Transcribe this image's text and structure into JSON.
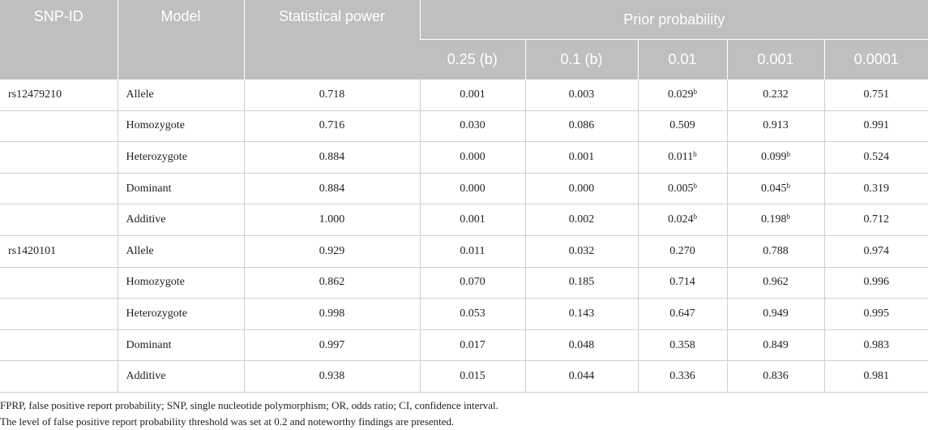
{
  "header": {
    "snp_id": "SNP-ID",
    "model": "Model",
    "statistical_power": "Statistical power",
    "prior_probability": "Prior probability",
    "priors": [
      "0.25 (b)",
      "0.1 (b)",
      "0.01",
      "0.001",
      "0.0001"
    ]
  },
  "rows": [
    {
      "snp": "rs12479210",
      "model": "Allele",
      "power": "0.718",
      "v": [
        "0.001",
        "0.003",
        "0.029",
        "0.232",
        "0.751"
      ],
      "sup": [
        "",
        "",
        "b",
        "",
        ""
      ]
    },
    {
      "snp": "",
      "model": "Homozygote",
      "power": "0.716",
      "v": [
        "0.030",
        "0.086",
        "0.509",
        "0.913",
        "0.991"
      ],
      "sup": [
        "",
        "",
        "",
        "",
        ""
      ]
    },
    {
      "snp": "",
      "model": "Heterozygote",
      "power": "0.884",
      "v": [
        "0.000",
        "0.001",
        "0.011",
        "0.099",
        "0.524"
      ],
      "sup": [
        "",
        "",
        "b",
        "b",
        ""
      ]
    },
    {
      "snp": "",
      "model": "Dominant",
      "power": "0.884",
      "v": [
        "0.000",
        "0.000",
        "0.005",
        "0.045",
        "0.319"
      ],
      "sup": [
        "",
        "",
        "b",
        "b",
        ""
      ]
    },
    {
      "snp": "",
      "model": "Additive",
      "power": "1.000",
      "v": [
        "0.001",
        "0.002",
        "0.024",
        "0.198",
        "0.712"
      ],
      "sup": [
        "",
        "",
        "b",
        "b",
        ""
      ]
    },
    {
      "snp": "rs1420101",
      "model": "Allele",
      "power": "0.929",
      "v": [
        "0.011",
        "0.032",
        "0.270",
        "0.788",
        "0.974"
      ],
      "sup": [
        "",
        "",
        "",
        "",
        ""
      ]
    },
    {
      "snp": "",
      "model": "Homozygote",
      "power": "0.862",
      "v": [
        "0.070",
        "0.185",
        "0.714",
        "0.962",
        "0.996"
      ],
      "sup": [
        "",
        "",
        "",
        "",
        ""
      ]
    },
    {
      "snp": "",
      "model": "Heterozygote",
      "power": "0.998",
      "v": [
        "0.053",
        "0.143",
        "0.647",
        "0.949",
        "0.995"
      ],
      "sup": [
        "",
        "",
        "",
        "",
        ""
      ]
    },
    {
      "snp": "",
      "model": "Dominant",
      "power": "0.997",
      "v": [
        "0.017",
        "0.048",
        "0.358",
        "0.849",
        "0.983"
      ],
      "sup": [
        "",
        "",
        "",
        "",
        ""
      ]
    },
    {
      "snp": "",
      "model": "Additive",
      "power": "0.938",
      "v": [
        "0.015",
        "0.044",
        "0.336",
        "0.836",
        "0.981"
      ],
      "sup": [
        "",
        "",
        "",
        "",
        ""
      ]
    }
  ],
  "notes": [
    "FPRP, false positive report probability; SNP, single nucleotide polymorphism; OR, odds ratio; CI, confidence interval.",
    "The level of false positive report probability threshold was set at 0.2 and noteworthy findings are presented."
  ]
}
